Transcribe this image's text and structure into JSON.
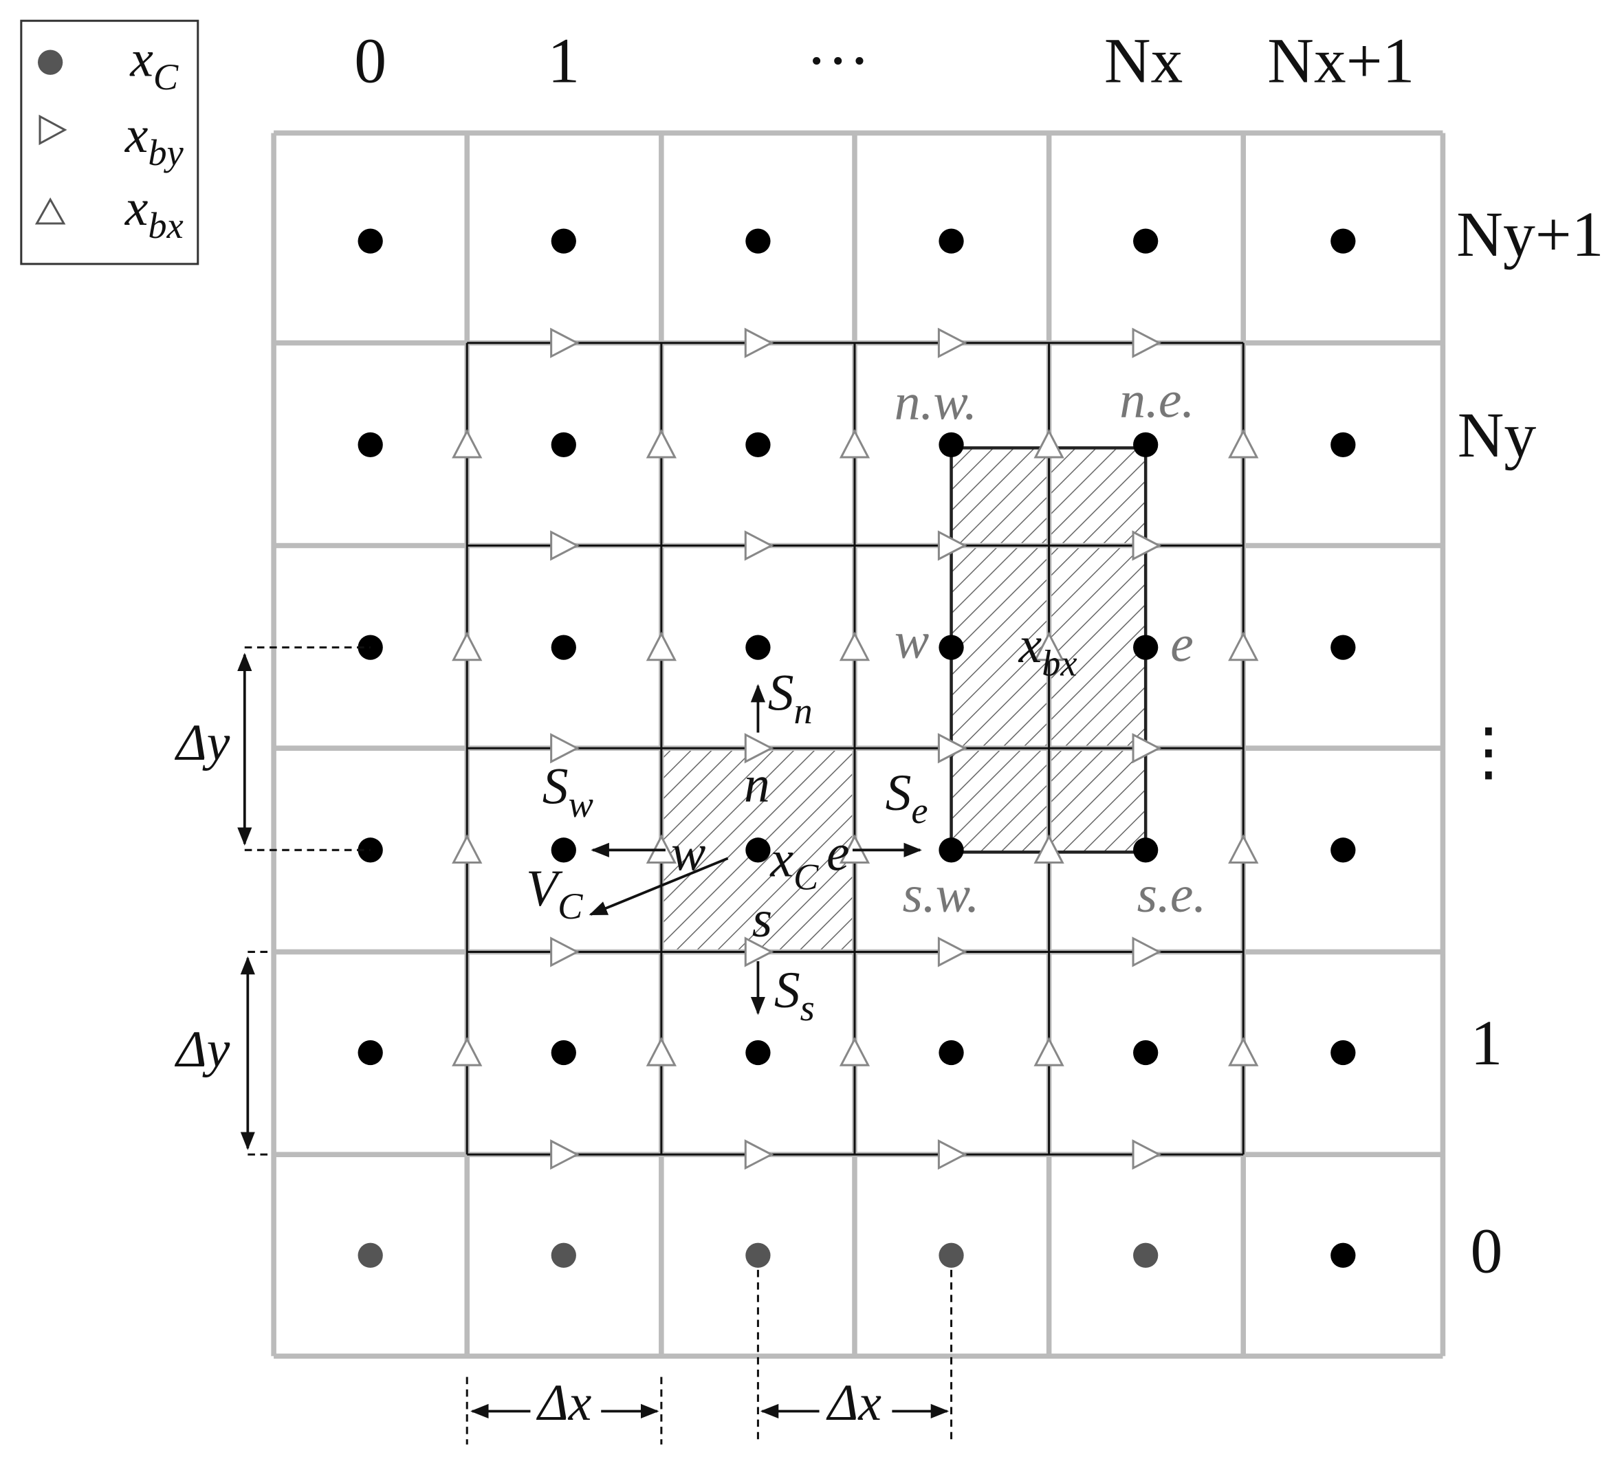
{
  "legend": {
    "items": [
      {
        "base": "x",
        "sub": "C"
      },
      {
        "base": "x",
        "sub": "by"
      },
      {
        "base": "x",
        "sub": "bx"
      }
    ]
  },
  "column_labels": [
    "0",
    "1",
    "···",
    "Nx",
    "Nx+1"
  ],
  "row_labels": [
    "Ny+1",
    "Ny",
    "⋮",
    "1",
    "0"
  ],
  "annotations": [
    {
      "base": "n.w."
    },
    {
      "base": "n.e."
    },
    {
      "base": "w"
    },
    {
      "base": "e"
    },
    {
      "base": "x",
      "sub": "bx"
    },
    {
      "base": "s.w."
    },
    {
      "base": "s.e."
    },
    {
      "base": "S",
      "sub": "n"
    },
    {
      "base": "S",
      "sub": "w"
    },
    {
      "base": "n"
    },
    {
      "base": "S",
      "sub": "e"
    },
    {
      "base": "w"
    },
    {
      "base": "x",
      "sub": "C"
    },
    {
      "base": "e"
    },
    {
      "base": "V",
      "sub": "C"
    },
    {
      "base": "s"
    },
    {
      "base": "S",
      "sub": "s"
    },
    {
      "base": "Δy"
    },
    {
      "base": "Δy"
    },
    {
      "base": "Δx"
    },
    {
      "base": "Δx"
    }
  ]
}
